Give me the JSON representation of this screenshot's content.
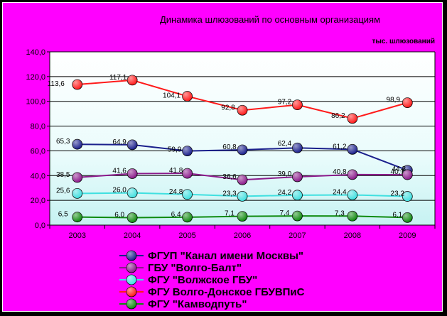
{
  "chart_data": {
    "type": "line",
    "title": "Динамика шлюзований по основным организациям",
    "unit_label": "тыс. шлюзований",
    "categories": [
      "2003",
      "2004",
      "2005",
      "2006",
      "2007",
      "2008",
      "2009"
    ],
    "ylim": [
      0,
      140
    ],
    "y_ticks": [
      "0,0",
      "20,0",
      "40,0",
      "60,0",
      "80,0",
      "100,0",
      "120,0",
      "140,0"
    ],
    "grid": "horizontal",
    "legend_position": "bottom",
    "series": [
      {
        "name": "ФГУП \"Канал имени Москвы\"",
        "color": "#1a1f8c",
        "values": [
          65.3,
          64.9,
          59.9,
          60.8,
          62.4,
          61.2,
          44.3
        ],
        "labels": [
          "65,3",
          "64,9",
          "59,9",
          "60,8",
          "62,4",
          "61,2",
          "44,3"
        ]
      },
      {
        "name": "ГБУ \"Волго-Балт\"",
        "color": "#8b1a8b",
        "values": [
          38.5,
          41.6,
          41.8,
          36.6,
          39.0,
          40.8,
          40.7
        ],
        "labels": [
          "38,5",
          "41,6",
          "41,8",
          "36,6",
          "39,0",
          "40,8",
          "40,7"
        ]
      },
      {
        "name": "ФГУ \"Волжское ГБУ\"",
        "color": "#40e0e0",
        "values": [
          25.6,
          26.0,
          24.8,
          23.3,
          24.2,
          24.4,
          23.2
        ],
        "labels": [
          "25,6",
          "26,0",
          "24,8",
          "23,3",
          "24,2",
          "24,4",
          "23,2"
        ]
      },
      {
        "name": "ФГУ Волго-Донское ГБУВПиС",
        "color": "#ff1a1a",
        "values": [
          113.6,
          117.1,
          104.1,
          92.8,
          97.2,
          86.2,
          98.9
        ],
        "labels": [
          "113,6",
          "117,1",
          "104,1",
          "92,8",
          "97,2",
          "86,2",
          "98,9"
        ]
      },
      {
        "name": "ФГУ \"Камводпуть\"",
        "color": "#0f8a0f",
        "values": [
          6.5,
          6.0,
          6.4,
          7.1,
          7.4,
          7.3,
          6.1
        ],
        "labels": [
          "6,5",
          "6,0",
          "6,4",
          "7,1",
          "7,4",
          "7,3",
          "6,1"
        ]
      }
    ]
  }
}
